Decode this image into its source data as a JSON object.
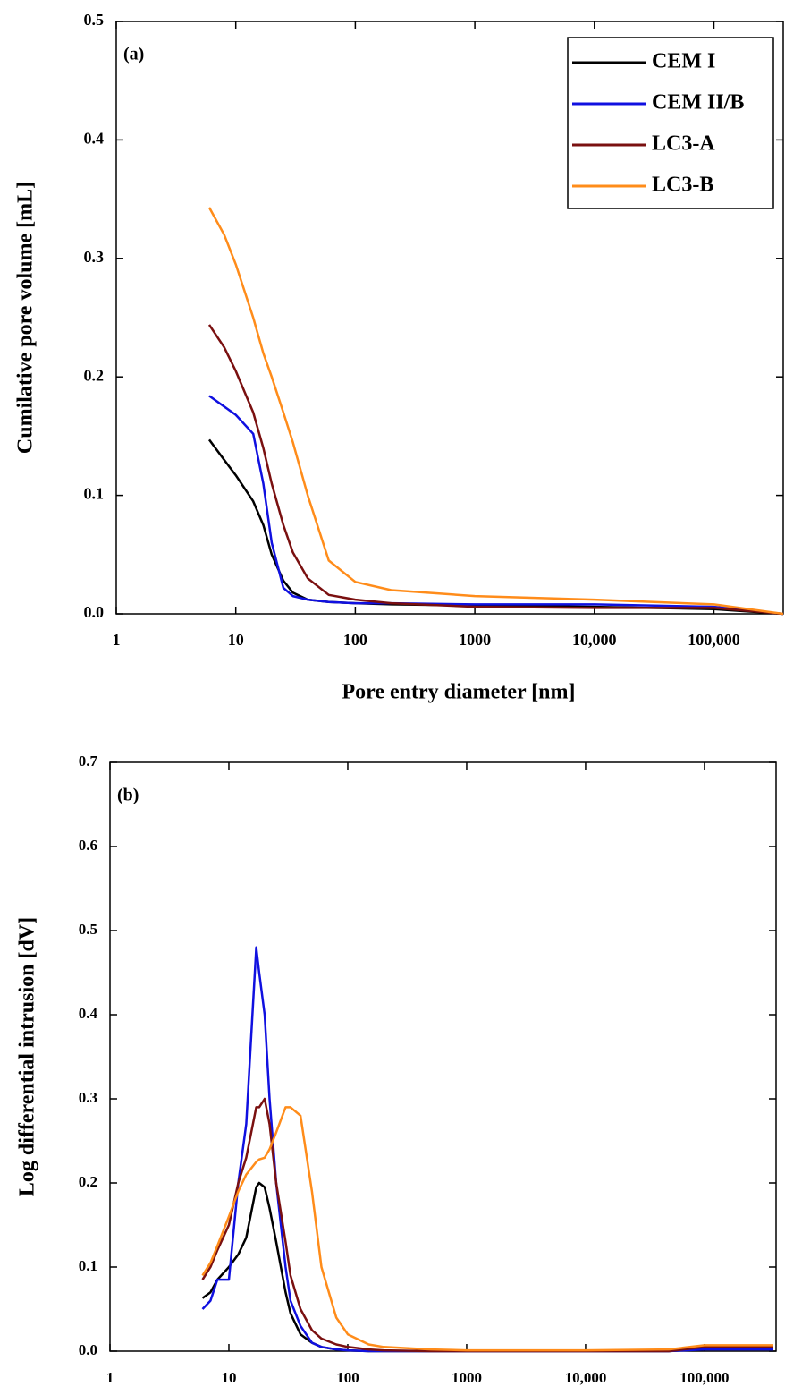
{
  "chart_data": [
    {
      "type": "line",
      "annotation": "(a)",
      "x_label": "Pore entry diameter [nm]",
      "y_label": "Cumilative pore volume [mL]",
      "xscale": "log",
      "xlim": [
        1,
        380000
      ],
      "ylim": [
        0,
        0.5
      ],
      "xticks": [
        1,
        10,
        100,
        1000,
        {
          "value": 10000,
          "label": "10,000"
        },
        {
          "value": 100000,
          "label": "100,000"
        }
      ],
      "yticks": [
        {
          "value": 0,
          "label": "0.0"
        },
        0.1,
        0.2,
        0.3,
        0.4,
        0.5
      ],
      "legend": "upper right",
      "x": [
        6,
        8,
        10,
        14,
        17,
        20,
        25,
        30,
        40,
        60,
        100,
        200,
        1000,
        10000,
        100000,
        380000
      ],
      "series": [
        {
          "name": "CEM I",
          "color": "#000000",
          "values": [
            0.147,
            0.13,
            0.117,
            0.095,
            0.075,
            0.05,
            0.028,
            0.018,
            0.012,
            0.01,
            0.009,
            0.008,
            0.007,
            0.006,
            0.004,
            0
          ]
        },
        {
          "name": "CEM II/B",
          "color": "#1010e0",
          "values": [
            0.184,
            0.175,
            0.168,
            0.152,
            0.11,
            0.06,
            0.022,
            0.015,
            0.012,
            0.01,
            0.009,
            0.009,
            0.008,
            0.008,
            0.006,
            0
          ]
        },
        {
          "name": "LC3-A",
          "color": "#7a1010",
          "values": [
            0.244,
            0.225,
            0.205,
            0.17,
            0.14,
            0.11,
            0.075,
            0.052,
            0.03,
            0.016,
            0.012,
            0.009,
            0.006,
            0.005,
            0.005,
            0
          ]
        },
        {
          "name": "LC3-B",
          "color": "#ff8c1a",
          "values": [
            0.343,
            0.32,
            0.295,
            0.25,
            0.22,
            0.2,
            0.17,
            0.145,
            0.1,
            0.045,
            0.027,
            0.02,
            0.015,
            0.012,
            0.008,
            0
          ]
        }
      ]
    },
    {
      "type": "line",
      "annotation": "(b)",
      "y_label": "Log differential intrusion [dV]",
      "xscale": "log",
      "xlim": [
        1,
        400000
      ],
      "ylim": [
        0,
        0.7
      ],
      "xticks": [
        1,
        10,
        100,
        1000,
        {
          "value": 10000,
          "label": "10,000"
        },
        {
          "value": 100000,
          "label": "100,000"
        }
      ],
      "yticks": [
        {
          "value": 0,
          "label": "0.0"
        },
        0.1,
        0.2,
        0.3,
        0.4,
        0.5,
        0.6,
        0.7
      ],
      "x": [
        6,
        7,
        8,
        10,
        12,
        14,
        17,
        18,
        20,
        22,
        25,
        30,
        33,
        40,
        50,
        60,
        80,
        100,
        150,
        200,
        500,
        1000,
        10000,
        50000,
        100000,
        380000
      ],
      "series": [
        {
          "color": "#000000",
          "values": [
            0.063,
            0.07,
            0.085,
            0.1,
            0.115,
            0.135,
            0.195,
            0.2,
            0.195,
            0.17,
            0.13,
            0.07,
            0.045,
            0.02,
            0.01,
            0.005,
            0.002,
            0.001,
            0,
            0,
            0,
            0,
            0,
            0,
            0.003,
            0.003
          ]
        },
        {
          "color": "#1010e0",
          "values": [
            0.05,
            0.06,
            0.085,
            0.085,
            0.2,
            0.27,
            0.48,
            0.45,
            0.4,
            0.3,
            0.2,
            0.1,
            0.06,
            0.03,
            0.01,
            0.005,
            0.002,
            0.001,
            0,
            0,
            0,
            0,
            0,
            0,
            0.002,
            0.002
          ]
        },
        {
          "color": "#7a1010",
          "values": [
            0.085,
            0.1,
            0.12,
            0.15,
            0.2,
            0.23,
            0.29,
            0.29,
            0.3,
            0.27,
            0.2,
            0.13,
            0.09,
            0.05,
            0.025,
            0.015,
            0.008,
            0.005,
            0.002,
            0.001,
            0,
            0,
            0,
            0,
            0.005,
            0.005
          ]
        },
        {
          "color": "#ff8c1a",
          "values": [
            0.09,
            0.105,
            0.125,
            0.16,
            0.19,
            0.21,
            0.225,
            0.228,
            0.23,
            0.24,
            0.26,
            0.29,
            0.29,
            0.28,
            0.19,
            0.1,
            0.04,
            0.02,
            0.008,
            0.005,
            0.002,
            0.001,
            0.001,
            0.002,
            0.007,
            0.007
          ]
        }
      ]
    }
  ]
}
